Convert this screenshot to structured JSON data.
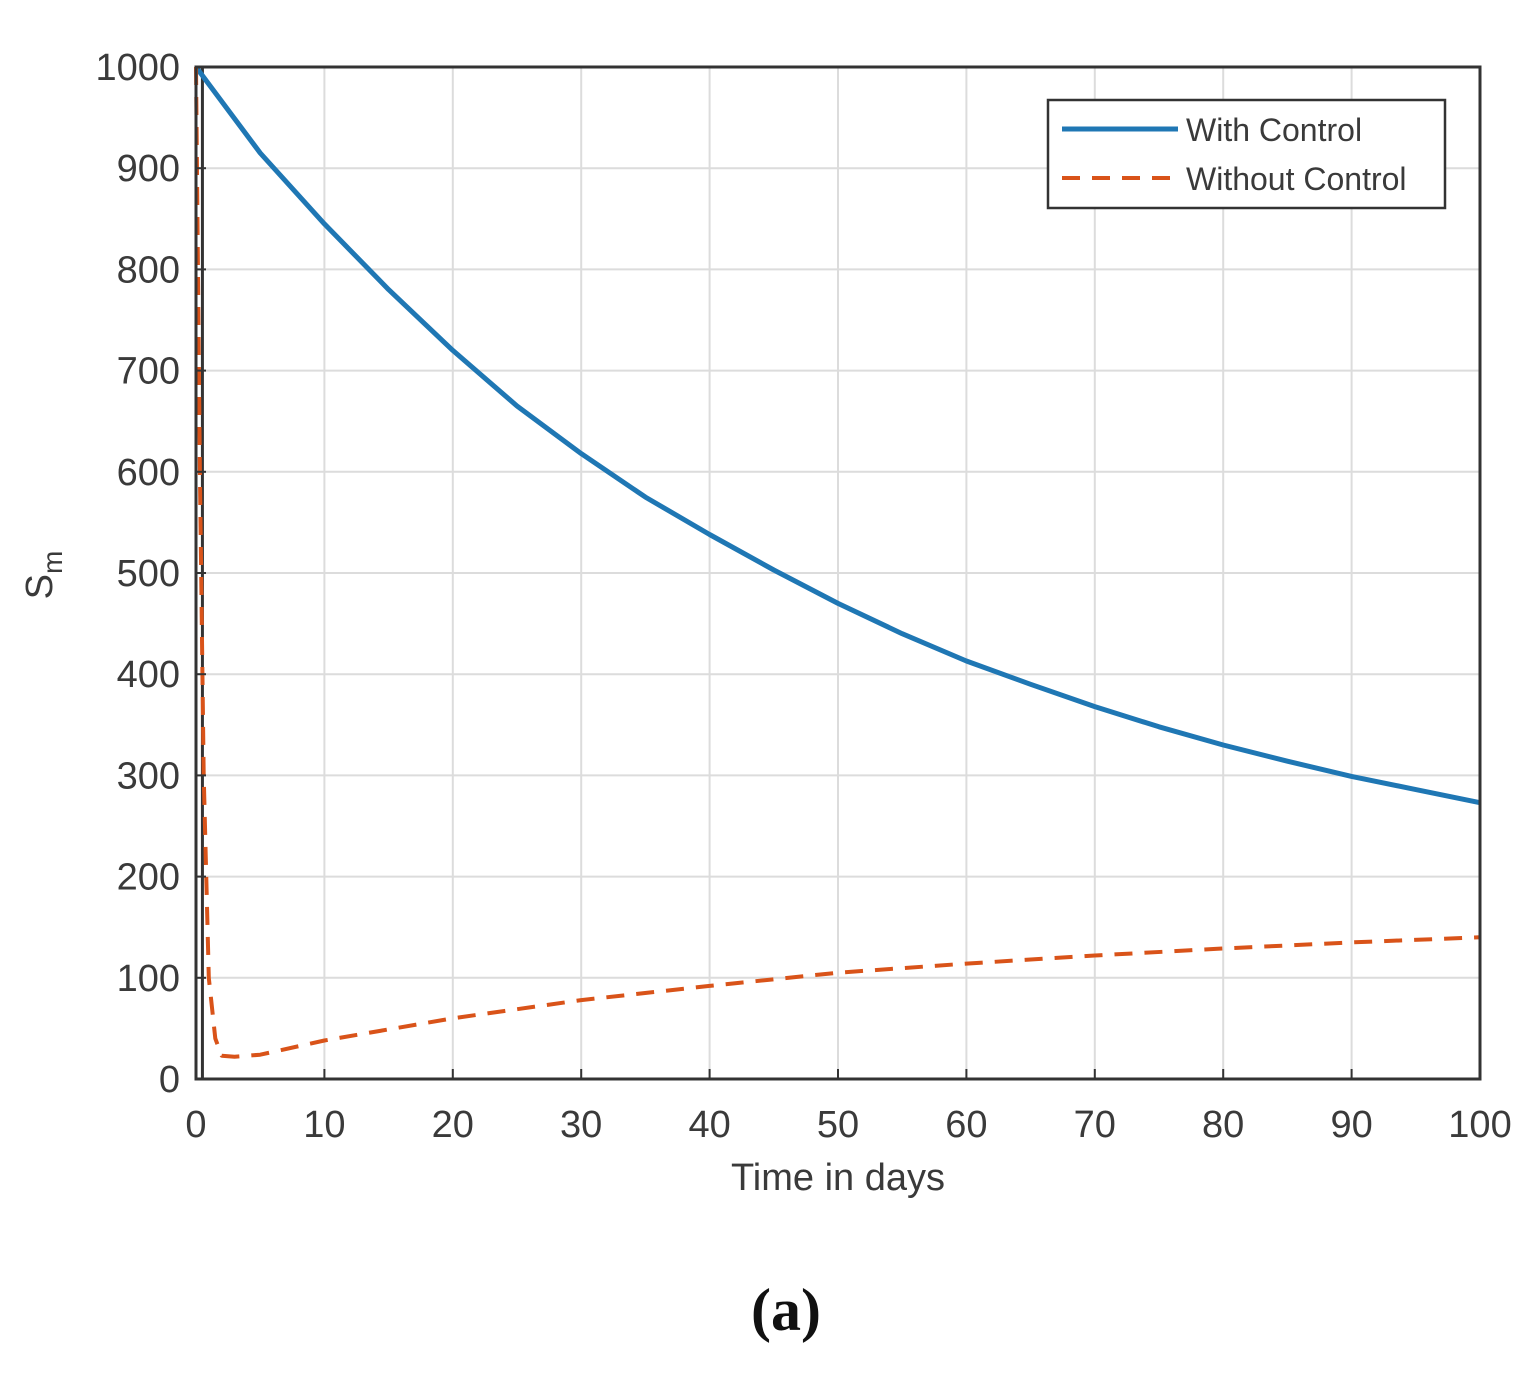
{
  "chart_data": {
    "type": "line",
    "title": "",
    "xlabel": "Time in days",
    "ylabel": "S",
    "ylabel_subscript": "m",
    "xlim": [
      0,
      100
    ],
    "ylim": [
      0,
      1000
    ],
    "xticks": [
      0,
      10,
      20,
      30,
      40,
      50,
      60,
      70,
      80,
      90,
      100
    ],
    "yticks": [
      0,
      100,
      200,
      300,
      400,
      500,
      600,
      700,
      800,
      900,
      1000
    ],
    "grid": true,
    "legend_position": "top-right",
    "series": [
      {
        "name": "With Control",
        "style": "solid",
        "color": "#1f77b4",
        "x": [
          0,
          5,
          10,
          15,
          20,
          25,
          30,
          35,
          40,
          45,
          50,
          55,
          60,
          65,
          70,
          75,
          80,
          85,
          90,
          95,
          100
        ],
        "y": [
          1000,
          915,
          845,
          780,
          720,
          665,
          618,
          575,
          538,
          503,
          470,
          440,
          413,
          390,
          368,
          348,
          330,
          314,
          299,
          286,
          273
        ]
      },
      {
        "name": "Without Control",
        "style": "dashed",
        "color": "#d95319",
        "x": [
          0,
          0.3,
          0.6,
          1,
          1.5,
          2,
          3,
          5,
          10,
          20,
          30,
          40,
          50,
          60,
          70,
          80,
          90,
          100
        ],
        "y": [
          1000,
          600,
          300,
          100,
          40,
          23,
          22,
          24,
          38,
          60,
          78,
          92,
          105,
          114,
          122,
          129,
          135,
          140
        ]
      }
    ]
  },
  "caption": "(a)"
}
